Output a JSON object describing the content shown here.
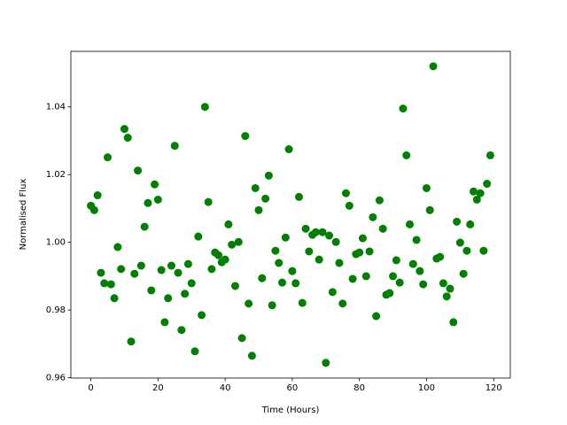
{
  "chart_data": {
    "type": "scatter",
    "x_label": "Time (Hours)",
    "y_label": "Normalised Flux",
    "color": "#008000",
    "xlim": [
      -5.95,
      124.95
    ],
    "ylim": [
      0.9599,
      1.0564
    ],
    "xticks": [
      0,
      20,
      40,
      60,
      80,
      100,
      120
    ],
    "yticks": [
      {
        "value": 0.96,
        "label": "0.96"
      },
      {
        "value": 0.98,
        "label": "0.98"
      },
      {
        "value": 1.0,
        "label": "1.00"
      },
      {
        "value": 1.02,
        "label": "1.02"
      },
      {
        "value": 1.04,
        "label": "1.04"
      }
    ],
    "x": [
      0,
      1,
      2,
      3,
      4,
      5,
      6,
      7,
      8,
      9,
      10,
      11,
      12,
      13,
      14,
      15,
      16,
      17,
      18,
      19,
      20,
      21,
      22,
      23,
      24,
      25,
      26,
      27,
      28,
      29,
      30,
      31,
      32,
      33,
      34,
      35,
      36,
      37,
      38,
      39,
      40,
      41,
      42,
      43,
      44,
      45,
      46,
      47,
      48,
      49,
      50,
      51,
      52,
      53,
      54,
      55,
      56,
      57,
      58,
      59,
      60,
      61,
      62,
      63,
      64,
      65,
      66,
      67,
      68,
      69,
      70,
      71,
      72,
      73,
      74,
      75,
      76,
      77,
      78,
      79,
      80,
      81,
      82,
      83,
      84,
      85,
      86,
      87,
      88,
      89,
      90,
      91,
      92,
      93,
      94,
      95,
      96,
      97,
      98,
      99,
      100,
      101,
      102,
      103,
      104,
      105,
      106,
      107,
      108,
      109,
      110,
      111,
      112,
      113,
      114,
      115,
      116,
      117,
      118,
      119
    ],
    "values": [
      1.0108,
      1.0095,
      1.0139,
      0.991,
      0.9879,
      1.0251,
      0.9876,
      0.9835,
      0.9986,
      0.9921,
      1.0335,
      1.0309,
      0.9707,
      0.9907,
      1.0212,
      0.9931,
      1.0046,
      1.0116,
      0.9858,
      1.0171,
      1.0126,
      0.9918,
      0.9764,
      0.9835,
      0.9931,
      1.0285,
      0.991,
      0.9741,
      0.9848,
      0.9936,
      0.9879,
      0.9678,
      1.0017,
      0.9785,
      1.04,
      1.0119,
      0.9921,
      0.997,
      0.9962,
      0.9941,
      0.9949,
      1.0053,
      0.9993,
      0.9871,
      1.0001,
      0.9717,
      1.0314,
      0.9819,
      0.9665,
      1.016,
      1.0095,
      0.9894,
      1.0129,
      1.0197,
      0.9814,
      0.9975,
      0.9939,
      0.9881,
      1.0014,
      1.0275,
      0.9915,
      0.9879,
      1.0134,
      0.9821,
      1.004,
      0.9973,
      1.0022,
      1.003,
      0.9949,
      1.003,
      0.9644,
      1.002,
      0.9853,
      1.0001,
      0.9939,
      0.9819,
      1.0145,
      1.0108,
      0.9892,
      0.9965,
      0.997,
      1.0012,
      0.99,
      0.9973,
      1.0074,
      0.9782,
      1.0124,
      1.004,
      0.9845,
      0.985,
      0.99,
      0.9947,
      0.9881,
      1.0395,
      1.0257,
      1.0053,
      0.9936,
      1.0007,
      0.9915,
      0.9876,
      1.016,
      1.0095,
      1.052,
      0.9952,
      0.9957,
      0.9879,
      0.984,
      0.9863,
      0.9764,
      1.0061,
      0.9999,
      0.9907,
      0.9975,
      1.0053,
      1.015,
      1.0126,
      1.0145,
      0.9975,
      1.0173,
      1.0257
    ]
  }
}
